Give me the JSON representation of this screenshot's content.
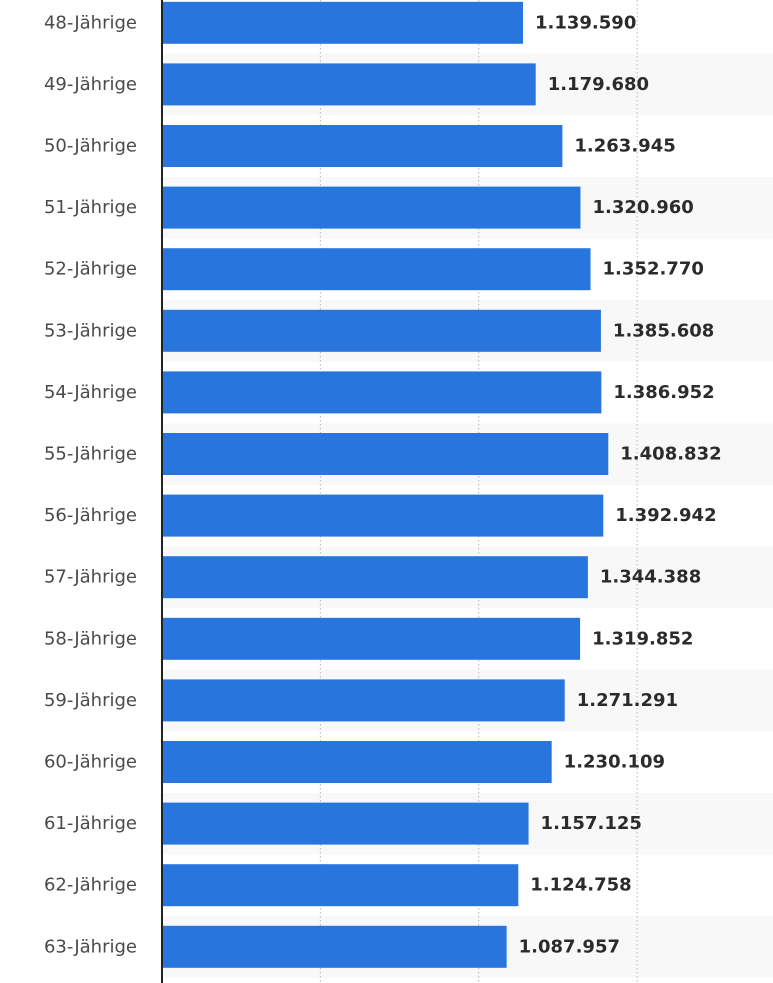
{
  "chart_data": {
    "type": "bar",
    "orientation": "horizontal",
    "categories": [
      "48-Jährige",
      "49-Jährige",
      "50-Jährige",
      "51-Jährige",
      "52-Jährige",
      "53-Jährige",
      "54-Jährige",
      "55-Jährige",
      "56-Jährige",
      "57-Jährige",
      "58-Jährige",
      "59-Jährige",
      "60-Jährige",
      "61-Jährige",
      "62-Jährige",
      "63-Jährige"
    ],
    "values": [
      1139590,
      1179680,
      1263945,
      1320960,
      1352770,
      1385608,
      1386952,
      1408832,
      1392942,
      1344388,
      1319852,
      1271291,
      1230109,
      1157125,
      1124758,
      1087957
    ],
    "value_labels": [
      "1.139.590",
      "1.179.680",
      "1.263.945",
      "1.320.960",
      "1.352.770",
      "1.385.608",
      "1.386.952",
      "1.408.832",
      "1.392.942",
      "1.344.388",
      "1.319.852",
      "1.271.291",
      "1.230.109",
      "1.157.125",
      "1.124.758",
      "1.087.957"
    ],
    "partial_next_bar_value": 1050000,
    "xlim": [
      0,
      2000000
    ],
    "title": "",
    "xlabel": "",
    "ylabel": "",
    "grid": true,
    "legend": "none",
    "colors": {
      "bar": "#2876dd",
      "grid": "#b8b8b8",
      "axis": "#222222",
      "band": "#f8f8f8",
      "label": "#4a4a4a",
      "value": "#2b2b2b"
    }
  }
}
